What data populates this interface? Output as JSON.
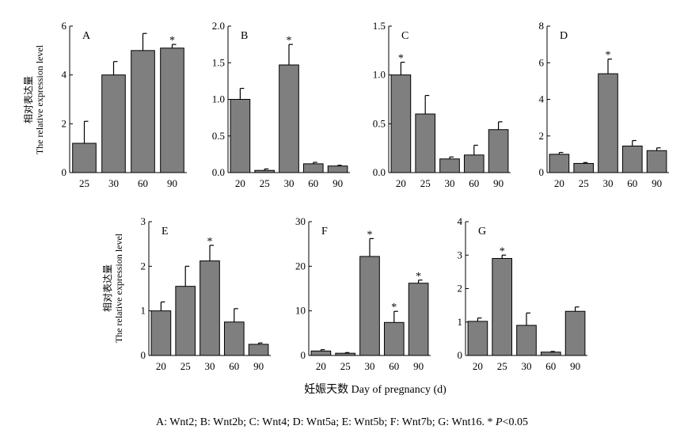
{
  "figure": {
    "ylabel_cn": "相对表达量",
    "ylabel_en": "The relative expression level",
    "xlabel": "妊娠天数 Day of pregnancy (d)",
    "caption_main": "A: Wnt2; B: Wnt2b; C: Wnt4; D: Wnt5a; E: Wnt5b; F: Wnt7b; G: Wnt16. * ",
    "caption_p": "P",
    "caption_tail": "<0.05"
  },
  "colors": {
    "bar": "#7f7f7f",
    "axis": "#000000"
  },
  "chart_data": [
    {
      "type": "bar",
      "label": "A",
      "categories": [
        "25",
        "30",
        "60",
        "90"
      ],
      "values": [
        1.2,
        4.0,
        5.0,
        5.1
      ],
      "errors": [
        0.9,
        0.55,
        0.7,
        0.15
      ],
      "significant": [
        false,
        false,
        false,
        true
      ],
      "ylim": [
        0,
        6
      ],
      "yticks": [
        "0",
        "2",
        "4",
        "6"
      ]
    },
    {
      "type": "bar",
      "label": "B",
      "categories": [
        "20",
        "25",
        "30",
        "60",
        "90"
      ],
      "values": [
        1.0,
        0.03,
        1.47,
        0.12,
        0.09
      ],
      "errors": [
        0.15,
        0.02,
        0.28,
        0.02,
        0.01
      ],
      "significant": [
        false,
        false,
        true,
        false,
        false
      ],
      "ylim": [
        0,
        2.0
      ],
      "yticks": [
        "0.0",
        "0.5",
        "1.0",
        "1.5",
        "2.0"
      ]
    },
    {
      "type": "bar",
      "label": "C",
      "categories": [
        "20",
        "25",
        "30",
        "60",
        "90"
      ],
      "values": [
        1.0,
        0.6,
        0.14,
        0.18,
        0.44
      ],
      "errors": [
        0.13,
        0.19,
        0.02,
        0.1,
        0.08
      ],
      "significant": [
        true,
        false,
        false,
        false,
        false
      ],
      "ylim": [
        0,
        1.5
      ],
      "yticks": [
        "0.0",
        "0.5",
        "1.0",
        "1.5"
      ]
    },
    {
      "type": "bar",
      "label": "D",
      "categories": [
        "20",
        "25",
        "30",
        "60",
        "90"
      ],
      "values": [
        1.0,
        0.5,
        5.4,
        1.45,
        1.2
      ],
      "errors": [
        0.1,
        0.05,
        0.8,
        0.3,
        0.15
      ],
      "significant": [
        false,
        false,
        true,
        false,
        false
      ],
      "ylim": [
        0,
        8
      ],
      "yticks": [
        "0",
        "2",
        "4",
        "6",
        "8"
      ]
    },
    {
      "type": "bar",
      "label": "E",
      "categories": [
        "20",
        "25",
        "30",
        "60",
        "90"
      ],
      "values": [
        1.0,
        1.55,
        2.12,
        0.75,
        0.25
      ],
      "errors": [
        0.2,
        0.45,
        0.35,
        0.3,
        0.03
      ],
      "significant": [
        false,
        false,
        true,
        false,
        false
      ],
      "ylim": [
        0,
        3
      ],
      "yticks": [
        "0",
        "1",
        "2",
        "3"
      ]
    },
    {
      "type": "bar",
      "label": "F",
      "categories": [
        "20",
        "25",
        "30",
        "60",
        "90"
      ],
      "values": [
        1.0,
        0.5,
        22.2,
        7.4,
        16.2
      ],
      "errors": [
        0.3,
        0.15,
        4.0,
        2.5,
        0.7
      ],
      "significant": [
        false,
        false,
        true,
        true,
        true
      ],
      "ylim": [
        0,
        30
      ],
      "yticks": [
        "0",
        "10",
        "20",
        "30"
      ]
    },
    {
      "type": "bar",
      "label": "G",
      "categories": [
        "20",
        "25",
        "30",
        "60",
        "90"
      ],
      "values": [
        1.02,
        2.9,
        0.9,
        0.1,
        1.32
      ],
      "errors": [
        0.1,
        0.1,
        0.37,
        0.02,
        0.13
      ],
      "significant": [
        false,
        true,
        false,
        false,
        false
      ],
      "ylim": [
        0,
        4
      ],
      "yticks": [
        "0",
        "1",
        "2",
        "3",
        "4"
      ]
    }
  ]
}
